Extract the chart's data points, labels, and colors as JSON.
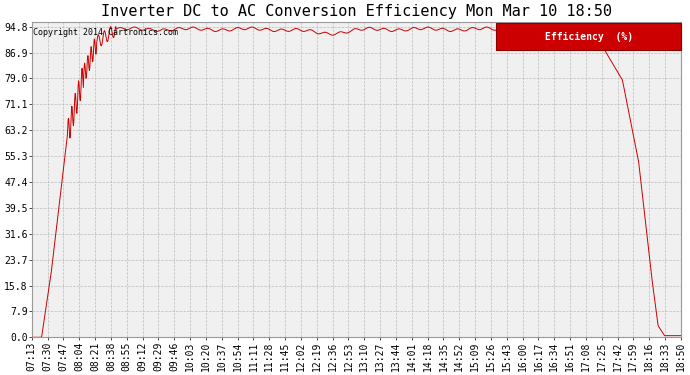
{
  "title": "Inverter DC to AC Conversion Efficiency Mon Mar 10 18:50",
  "copyright": "Copyright 2014 Cartronics.com",
  "legend_label": "Efficiency  (%)",
  "yticks": [
    0.0,
    7.9,
    15.8,
    23.7,
    31.6,
    39.5,
    47.4,
    55.3,
    63.2,
    71.1,
    79.0,
    86.9,
    94.8
  ],
  "ymin": 0.0,
  "ymax": 94.8,
  "bg_color": "#f0f0f0",
  "line_color": "#cc0000",
  "grid_color": "#bbbbbb",
  "title_fontsize": 11,
  "tick_fontsize": 7,
  "xtick_labels": [
    "07:13",
    "07:30",
    "07:47",
    "08:04",
    "08:21",
    "08:38",
    "08:55",
    "09:12",
    "09:29",
    "09:46",
    "10:03",
    "10:20",
    "10:37",
    "10:54",
    "11:11",
    "11:28",
    "11:45",
    "12:02",
    "12:19",
    "12:36",
    "12:53",
    "13:10",
    "13:27",
    "13:44",
    "14:01",
    "14:18",
    "14:35",
    "14:52",
    "15:09",
    "15:26",
    "15:43",
    "16:00",
    "16:17",
    "16:34",
    "16:51",
    "17:08",
    "17:25",
    "17:42",
    "17:59",
    "18:16",
    "18:33",
    "18:50"
  ]
}
